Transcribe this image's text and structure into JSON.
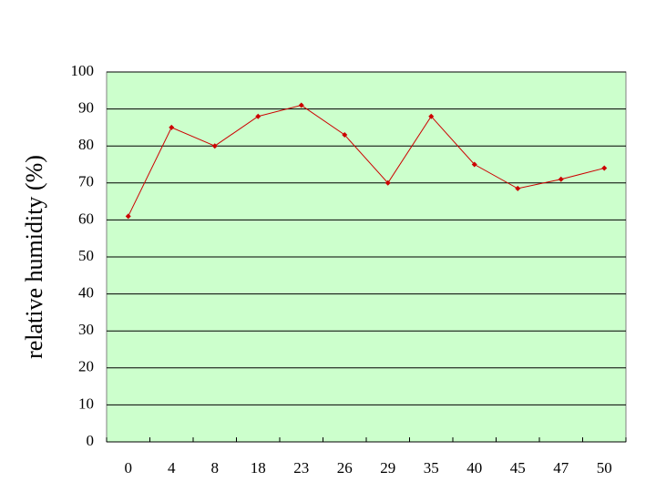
{
  "chart_data": {
    "type": "line",
    "y_label": "relative humidity (%)",
    "categories": [
      "0",
      "4",
      "8",
      "18",
      "23",
      "26",
      "29",
      "35",
      "40",
      "45",
      "47",
      "50"
    ],
    "series": [
      {
        "color": "#cc0000",
        "values": [
          61,
          85,
          80,
          88,
          91,
          83,
          70,
          88,
          75,
          68.5,
          71,
          74
        ]
      }
    ],
    "ylim": [
      0,
      100
    ],
    "yticks": [
      0,
      10,
      20,
      30,
      40,
      50,
      60,
      70,
      80,
      90,
      100
    ],
    "grid": true,
    "plot_background": "#ccffcc"
  }
}
